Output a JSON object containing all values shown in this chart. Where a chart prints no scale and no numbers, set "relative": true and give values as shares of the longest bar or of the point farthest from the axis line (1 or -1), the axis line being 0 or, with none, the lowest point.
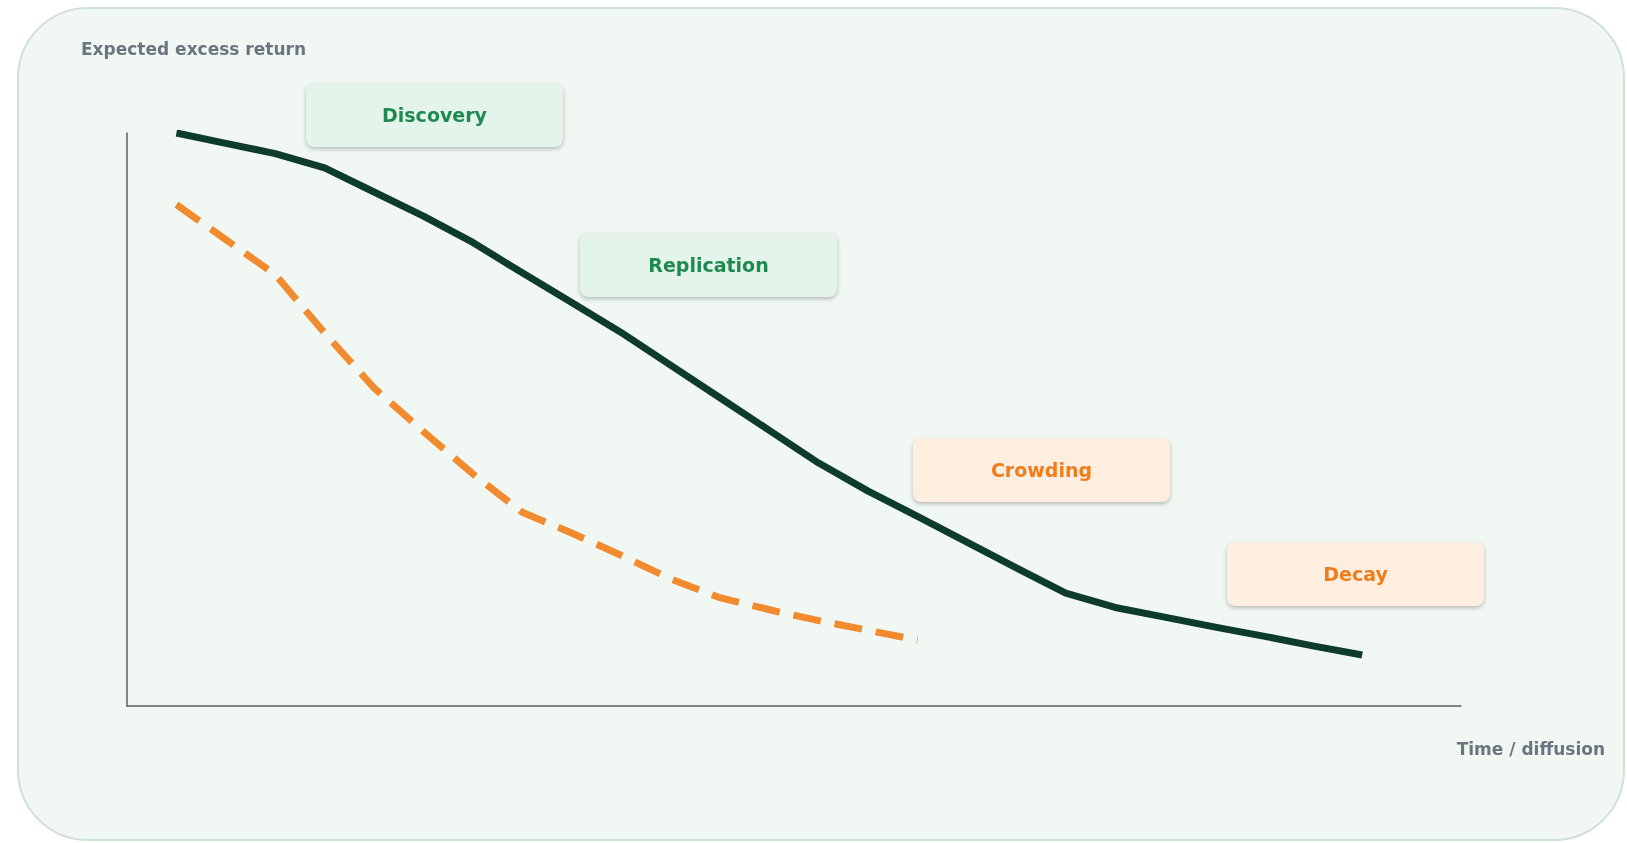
{
  "chart_data": {
    "type": "line",
    "relative": true,
    "xlabel": "Time / diffusion",
    "ylabel": "Expected excess return",
    "grid": false,
    "marker": "none",
    "annotations": [
      "Discovery",
      "Replication",
      "Crowding",
      "Decay"
    ],
    "categories": [
      null,
      null,
      null,
      null,
      null,
      null,
      null,
      null,
      null,
      null,
      null,
      null,
      null,
      null,
      null,
      null,
      null,
      null,
      null,
      null,
      null,
      null,
      null,
      null,
      null,
      null,
      null,
      null
    ],
    "series": [
      {
        "color": "#0d3b2e",
        "line_style": "solid",
        "values": [
          null,
          1,
          0.982,
          0.964,
          0.939,
          0.897,
          0.855,
          0.809,
          0.756,
          0.704,
          0.652,
          0.595,
          0.538,
          0.481,
          0.424,
          0.375,
          0.331,
          0.286,
          0.241,
          0.197,
          0.172,
          0.155,
          0.138,
          0.122,
          0.105,
          0.089,
          null,
          null
        ]
      },
      {
        "color": "#f28a2e",
        "line_style": "dashed",
        "values": [
          null,
          0.875,
          0.814,
          0.753,
          0.651,
          0.555,
          0.479,
          0.405,
          0.338,
          0.302,
          0.263,
          0.222,
          0.189,
          0.168,
          0.149,
          0.132,
          0.115,
          null,
          null,
          null,
          null,
          null,
          null,
          null,
          null,
          null,
          null,
          null
        ]
      }
    ]
  }
}
